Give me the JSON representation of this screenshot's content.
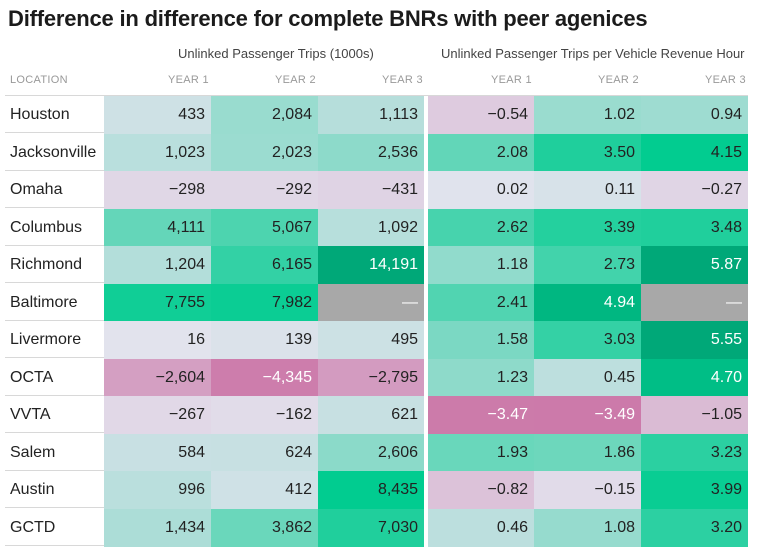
{
  "title": "Difference in difference for complete BNRs with peer agenices",
  "group_headers": {
    "left": "Unlinked Passenger Trips (1000s)",
    "right": "Unlinked Passenger Trips per Vehicle Revenue Hour"
  },
  "column_headers": {
    "location": "LOCATION",
    "years": [
      "YEAR 1",
      "YEAR 2",
      "YEAR 3",
      "YEAR 1",
      "YEAR 2",
      "YEAR 3"
    ]
  },
  "chart_data": {
    "type": "table",
    "locations": [
      "Houston",
      "Jacksonville",
      "Omaha",
      "Columbus",
      "Richmond",
      "Baltimore",
      "Livermore",
      "OCTA",
      "VVTA",
      "Salem",
      "Austin",
      "GCTD"
    ],
    "trips": [
      [
        433,
        2084,
        1113
      ],
      [
        1023,
        2023,
        2536
      ],
      [
        -298,
        -292,
        -431
      ],
      [
        4111,
        5067,
        1092
      ],
      [
        1204,
        6165,
        14191
      ],
      [
        7755,
        7982,
        null
      ],
      [
        16,
        139,
        495
      ],
      [
        -2604,
        -4345,
        -2795
      ],
      [
        -267,
        -162,
        621
      ],
      [
        584,
        624,
        2606
      ],
      [
        996,
        412,
        8435
      ],
      [
        1434,
        3862,
        7030
      ]
    ],
    "trips_per_hour": [
      [
        -0.54,
        1.02,
        0.94
      ],
      [
        2.08,
        3.5,
        4.15
      ],
      [
        0.02,
        0.11,
        -0.27
      ],
      [
        2.62,
        3.39,
        3.48
      ],
      [
        1.18,
        2.73,
        5.87
      ],
      [
        2.41,
        4.94,
        null
      ],
      [
        1.58,
        3.03,
        5.55
      ],
      [
        1.23,
        0.45,
        4.7
      ],
      [
        -3.47,
        -3.49,
        -1.05
      ],
      [
        1.93,
        1.86,
        3.23
      ],
      [
        -0.82,
        -0.15,
        3.99
      ],
      [
        0.46,
        1.08,
        3.2
      ]
    ],
    "missing_label": "—",
    "colors": {
      "negative": "#cc7aaa",
      "neutral": "#e3e3ee",
      "positive": "#00cc8f",
      "strong_positive": "#00a878",
      "missing": "#a8a8a8",
      "text_dark": "#222222",
      "text_light": "#ffffff"
    }
  }
}
